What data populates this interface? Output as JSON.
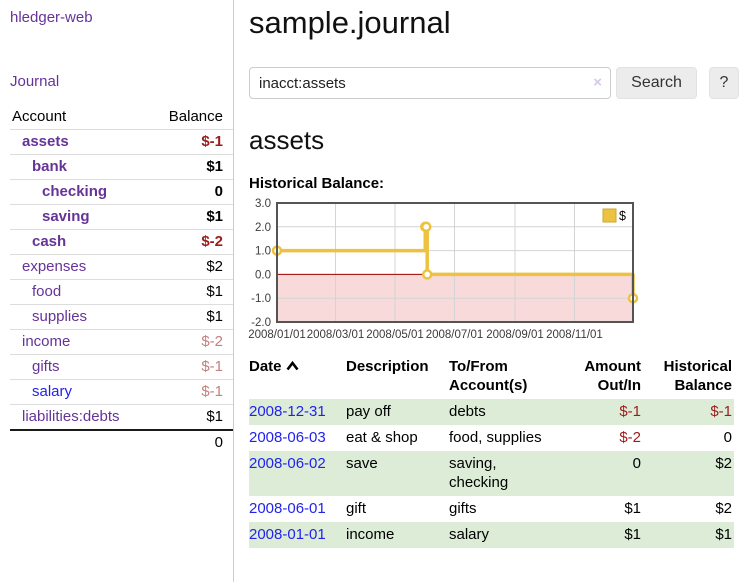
{
  "app": {
    "name": "hledger-web"
  },
  "colors": {
    "link_purple": "#663399",
    "link_blue": "#2222ee",
    "negative_strong": "#9e1b1b",
    "negative_soft": "#c47f7f",
    "row_stripe_green": "#dcecd7",
    "button_gray": "#ececec"
  },
  "sidebar": {
    "nav": {
      "journal_label": "Journal"
    },
    "table": {
      "account_header": "Account",
      "balance_header": "Balance",
      "accounts": [
        {
          "name": "assets",
          "indent": 1,
          "bold": true,
          "balance": "$-1",
          "neg": "strong"
        },
        {
          "name": "bank",
          "indent": 2,
          "bold": true,
          "balance": "$1"
        },
        {
          "name": "checking",
          "indent": 3,
          "bold": true,
          "balance": "0"
        },
        {
          "name": "saving",
          "indent": 3,
          "bold": true,
          "balance": "$1"
        },
        {
          "name": "cash",
          "indent": 2,
          "bold": true,
          "balance": "$-2",
          "neg": "strong"
        },
        {
          "name": "expenses",
          "indent": 1,
          "bold": false,
          "balance": "$2"
        },
        {
          "name": "food",
          "indent": 2,
          "bold": false,
          "balance": "$1"
        },
        {
          "name": "supplies",
          "indent": 2,
          "bold": false,
          "balance": "$1"
        },
        {
          "name": "income",
          "indent": 1,
          "bold": false,
          "balance": "$-2",
          "neg": "soft"
        },
        {
          "name": "gifts",
          "indent": 2,
          "bold": false,
          "balance": "$-1",
          "neg": "soft"
        },
        {
          "name": "salary",
          "indent": 2,
          "bold": false,
          "balance": "$-1",
          "neg": "soft",
          "blue": true
        },
        {
          "name": "liabilities:debts",
          "indent": 1,
          "bold": false,
          "balance": "$1"
        }
      ],
      "total": "0"
    }
  },
  "main": {
    "title": "sample.journal",
    "search": {
      "value": "inacct:assets",
      "clear_icon": "×",
      "search_button": "Search",
      "help_button": "?"
    },
    "account_heading": "assets",
    "chart_label": "Historical Balance:"
  },
  "chart_data": {
    "type": "line",
    "step": true,
    "title": "Historical Balance:",
    "xlim": [
      "2008-01-01",
      "2008-12-31"
    ],
    "ylim": [
      -2,
      3
    ],
    "yticks": [
      3.0,
      2.0,
      1.0,
      0.0,
      -1.0,
      -2.0
    ],
    "xticks": [
      "2008/01/01",
      "2008/03/01",
      "2008/05/01",
      "2008/07/01",
      "2008/09/01",
      "2008/11/01"
    ],
    "grid": true,
    "legend_position": "top-right",
    "series": [
      {
        "name": "$",
        "color": "#edc240",
        "points": [
          [
            "2008-01-01",
            1
          ],
          [
            "2008-06-01",
            2
          ],
          [
            "2008-06-02",
            2
          ],
          [
            "2008-06-03",
            0
          ],
          [
            "2008-12-31",
            -1
          ]
        ]
      }
    ],
    "negative_region_color": "#f8dada",
    "zero_line_color": "#a00000",
    "grid_color": "#d4d4d4",
    "border_color": "#545454"
  },
  "transactions": {
    "headers": {
      "date": "Date",
      "description": "Description",
      "tofrom": "To/From Account(s)",
      "amount": "Amount Out/In",
      "balance": "Historical Balance"
    },
    "rows": [
      {
        "date": "2008-12-31",
        "description": "pay off",
        "accounts": "debts",
        "amount": "$-1",
        "amount_neg": true,
        "balance": "$-1",
        "balance_neg": true
      },
      {
        "date": "2008-06-03",
        "description": "eat & shop",
        "accounts": "food, supplies",
        "amount": "$-2",
        "amount_neg": true,
        "balance": "0",
        "balance_neg": false
      },
      {
        "date": "2008-06-02",
        "description": "save",
        "accounts": "saving, checking",
        "amount": "0",
        "amount_neg": false,
        "balance": "$2",
        "balance_neg": false
      },
      {
        "date": "2008-06-01",
        "description": "gift",
        "accounts": "gifts",
        "amount": "$1",
        "amount_neg": false,
        "balance": "$2",
        "balance_neg": false
      },
      {
        "date": "2008-01-01",
        "description": "income",
        "accounts": "salary",
        "amount": "$1",
        "amount_neg": false,
        "balance": "$1",
        "balance_neg": false
      }
    ]
  }
}
